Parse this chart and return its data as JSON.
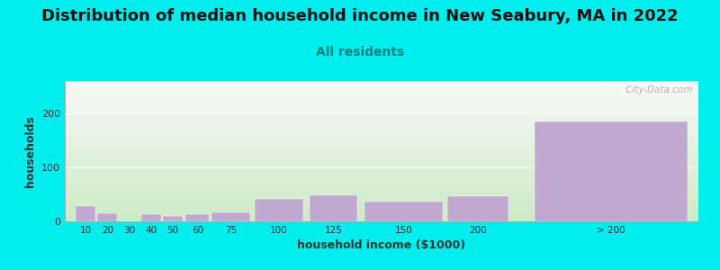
{
  "title": "Distribution of median household income in New Seabury, MA in 2022",
  "subtitle": "All residents",
  "xlabel": "household income ($1000)",
  "ylabel": "households",
  "background_color": "#00EEEE",
  "plot_bg_top": "#f0f0f0",
  "plot_bg_bottom": "#c8e8c0",
  "bar_color": "#C0A8D0",
  "title_fontsize": 13,
  "subtitle_fontsize": 10,
  "labels": [
    "10",
    "20",
    "30",
    "40",
    "50",
    "60",
    "75",
    "100",
    "125",
    "150",
    "200",
    "> 200"
  ],
  "values": [
    28,
    15,
    0,
    13,
    10,
    14,
    17,
    42,
    48,
    36,
    46,
    185
  ],
  "bar_left_edges": [
    5,
    15,
    25,
    35,
    45,
    55,
    67,
    87,
    112,
    137,
    175,
    215
  ],
  "bar_widths": [
    9,
    9,
    9,
    9,
    9,
    11,
    18,
    22,
    22,
    36,
    28,
    70
  ],
  "tick_centers": [
    9.5,
    19.5,
    29.5,
    39.5,
    49.5,
    61,
    76,
    98,
    123,
    155,
    189,
    250
  ],
  "xlim": [
    0,
    290
  ],
  "ylim": [
    0,
    260
  ],
  "yticks": [
    0,
    100,
    200
  ],
  "watermark": " City-Data.com"
}
